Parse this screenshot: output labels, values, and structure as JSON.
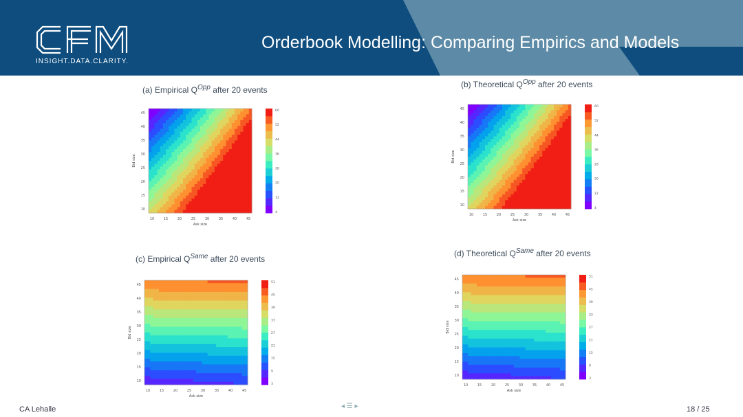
{
  "header": {
    "logo_text": "CFM",
    "tagline": "INSIGHT.DATA.CLARITY.",
    "title": "Orderbook Modelling: Comparing Empirics and Models",
    "bg_color": "#0e4d7e",
    "accent_color": "#5d8aa6"
  },
  "footer": {
    "author": "CA Lehalle",
    "page": "18 / 25",
    "nav_glyph": "◂ ☰ ▸"
  },
  "chart_data": [
    {
      "type": "heatmap",
      "caption_prefix": "(a) Empirical Q",
      "caption_sup": "Opp",
      "caption_suffix": " after 20 events",
      "xlabel": "Ask size",
      "ylabel": "Bid size",
      "xticks": [
        "10",
        "15",
        "20",
        "25",
        "30",
        "35",
        "40",
        "45"
      ],
      "yticks": [
        "10",
        "15",
        "20",
        "25",
        "30",
        "35",
        "40",
        "45"
      ],
      "cbar_ticks": [
        "4",
        "12",
        "20",
        "28",
        "36",
        "44",
        "52",
        "60"
      ],
      "pattern": "opp",
      "colormap": "rainbow"
    },
    {
      "type": "heatmap",
      "caption_prefix": "(b) Theoretical Q",
      "caption_sup": "Opp",
      "caption_suffix": " after 20 events",
      "xlabel": "Ask size",
      "ylabel": "Bid size",
      "xticks": [
        "10",
        "15",
        "20",
        "25",
        "30",
        "35",
        "40",
        "45"
      ],
      "yticks": [
        "10",
        "15",
        "20",
        "25",
        "30",
        "35",
        "40",
        "45"
      ],
      "cbar_ticks": [
        "4",
        "12",
        "20",
        "28",
        "36",
        "44",
        "52",
        "60"
      ],
      "pattern": "opp",
      "colormap": "rainbow"
    },
    {
      "type": "heatmap",
      "caption_prefix": "(c) Empirical Q",
      "caption_sup": "Same",
      "caption_suffix": " after 20 events",
      "xlabel": "Ask size",
      "ylabel": "Bid size",
      "xticks": [
        "10",
        "15",
        "20",
        "25",
        "30",
        "35",
        "40",
        "45"
      ],
      "yticks": [
        "10",
        "15",
        "20",
        "25",
        "30",
        "35",
        "40",
        "45"
      ],
      "cbar_ticks": [
        "3",
        "9",
        "15",
        "21",
        "27",
        "33",
        "39",
        "45",
        "51"
      ],
      "pattern": "same",
      "colormap": "rainbow"
    },
    {
      "type": "heatmap",
      "caption_prefix": "(d) Theoretical Q",
      "caption_sup": "Same",
      "caption_suffix": " after 20 events",
      "xlabel": "Ask size",
      "ylabel": "Bid size",
      "xticks": [
        "10",
        "15",
        "20",
        "25",
        "30",
        "35",
        "40",
        "45"
      ],
      "yticks": [
        "10",
        "15",
        "20",
        "25",
        "30",
        "35",
        "40",
        "45"
      ],
      "cbar_ticks": [
        "3",
        "9",
        "15",
        "21",
        "27",
        "33",
        "39",
        "45",
        "51"
      ],
      "pattern": "same",
      "colormap": "rainbow"
    }
  ]
}
